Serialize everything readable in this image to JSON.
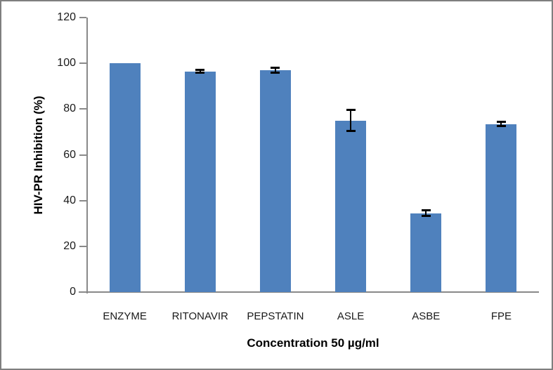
{
  "chart_data": {
    "type": "bar",
    "title": "",
    "xlabel": "Concentration 50 µg/ml",
    "ylabel": "HIV-PR Inhibition (%)",
    "categories": [
      "ENZYME",
      "RITONAVIR",
      "PEPSTATIN",
      "ASLE",
      "ASBE",
      "FPE"
    ],
    "values": [
      100,
      96.5,
      97,
      75,
      34.5,
      73.5
    ],
    "errors": [
      0,
      0.7,
      1.2,
      4.8,
      1.5,
      1.2
    ],
    "ylim": [
      0,
      120
    ],
    "yticks": [
      0,
      20,
      40,
      60,
      80,
      100,
      120
    ],
    "grid": false,
    "legend_position": "none",
    "bar_color": "#4f81bd",
    "error_bar_color": "#000000",
    "axis_color": "#898989",
    "frame_border_color": "#7f7f7f",
    "background_color": "#ffffff"
  }
}
